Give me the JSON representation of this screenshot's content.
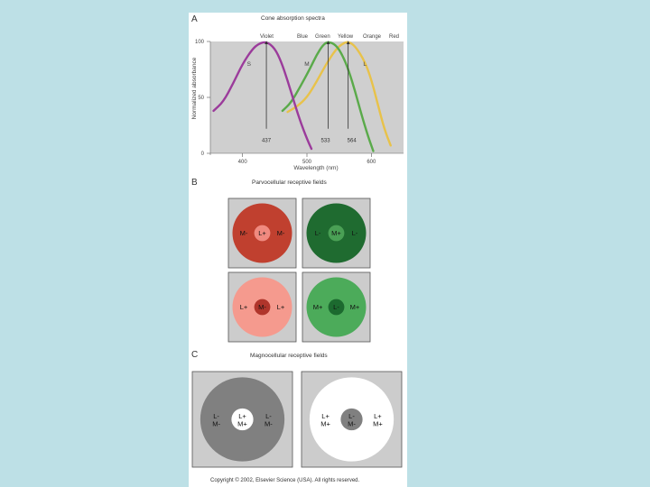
{
  "panels": {
    "a": {
      "letter": "A",
      "title": "Cone absorption spectra",
      "color_names": [
        "Violet",
        "Blue",
        "Green",
        "Yellow",
        "Orange",
        "Red"
      ],
      "colors": {
        "s": "#9b3b9b",
        "m": "#5aaa4a",
        "l": "#e8c24a",
        "bg": "#cfcfcf"
      }
    },
    "b": {
      "letter": "B",
      "title": "Parvocellular receptive fields",
      "fields": [
        {
          "center": "L+",
          "left": "M-",
          "right": "M-",
          "surround_color": "#c0402f",
          "center_color": "#f08a80"
        },
        {
          "center": "M+",
          "left": "L-",
          "right": "L-",
          "surround_color": "#1f6b30",
          "center_color": "#4aa055"
        },
        {
          "center": "M-",
          "left": "L+",
          "right": "L+",
          "surround_color": "#f59a8e",
          "center_color": "#b0352b"
        },
        {
          "center": "L-",
          "left": "M+",
          "right": "M+",
          "surround_color": "#4cab5a",
          "center_color": "#1c6a2f"
        }
      ]
    },
    "c": {
      "letter": "C",
      "title": "Magnocellular receptive fields",
      "fields": [
        {
          "center_top": "L+",
          "center_bottom": "M+",
          "left_top": "L-",
          "left_bottom": "M-",
          "right_top": "L-",
          "right_bottom": "M-",
          "surround_color": "#808080",
          "center_color": "#ffffff"
        },
        {
          "center_top": "L-",
          "center_bottom": "M-",
          "left_top": "L+",
          "left_bottom": "M+",
          "right_top": "L+",
          "right_bottom": "M+",
          "surround_color": "#ffffff",
          "center_color": "#808080"
        }
      ]
    }
  },
  "copyright": "Copyright © 2002, Elsevier Science (USA). All rights reserved.",
  "chart_data": {
    "type": "line",
    "title": "Cone absorption spectra",
    "xlabel": "Wavelength (nm)",
    "ylabel": "Normalized absorbance",
    "xlim": [
      350,
      650
    ],
    "ylim": [
      0,
      100
    ],
    "x_ticks": [
      "400",
      "500",
      "600"
    ],
    "y_ticks": [
      "0",
      "50",
      "100"
    ],
    "series": [
      {
        "name": "S",
        "peak": "437",
        "color": "#9b3b9b",
        "points": [
          [
            355,
            38
          ],
          [
            370,
            46
          ],
          [
            385,
            62
          ],
          [
            400,
            80
          ],
          [
            415,
            93
          ],
          [
            425,
            98
          ],
          [
            437,
            100
          ],
          [
            450,
            94
          ],
          [
            460,
            82
          ],
          [
            470,
            65
          ],
          [
            480,
            46
          ],
          [
            490,
            28
          ],
          [
            500,
            13
          ],
          [
            507,
            4
          ]
        ]
      },
      {
        "name": "M",
        "peak": "533",
        "color": "#5aaa4a",
        "points": [
          [
            462,
            38
          ],
          [
            475,
            45
          ],
          [
            490,
            60
          ],
          [
            505,
            76
          ],
          [
            515,
            88
          ],
          [
            525,
            97
          ],
          [
            533,
            100
          ],
          [
            545,
            97
          ],
          [
            555,
            88
          ],
          [
            565,
            74
          ],
          [
            575,
            55
          ],
          [
            585,
            34
          ],
          [
            595,
            15
          ],
          [
            603,
            2
          ]
        ]
      },
      {
        "name": "L",
        "peak": "564",
        "color": "#e8c24a",
        "points": [
          [
            470,
            37
          ],
          [
            485,
            42
          ],
          [
            500,
            50
          ],
          [
            515,
            64
          ],
          [
            530,
            80
          ],
          [
            545,
            93
          ],
          [
            555,
            98
          ],
          [
            564,
            100
          ],
          [
            575,
            96
          ],
          [
            590,
            82
          ],
          [
            600,
            66
          ],
          [
            610,
            44
          ],
          [
            620,
            22
          ],
          [
            630,
            7
          ]
        ]
      }
    ],
    "annotations": [
      "437",
      "533",
      "564"
    ]
  }
}
